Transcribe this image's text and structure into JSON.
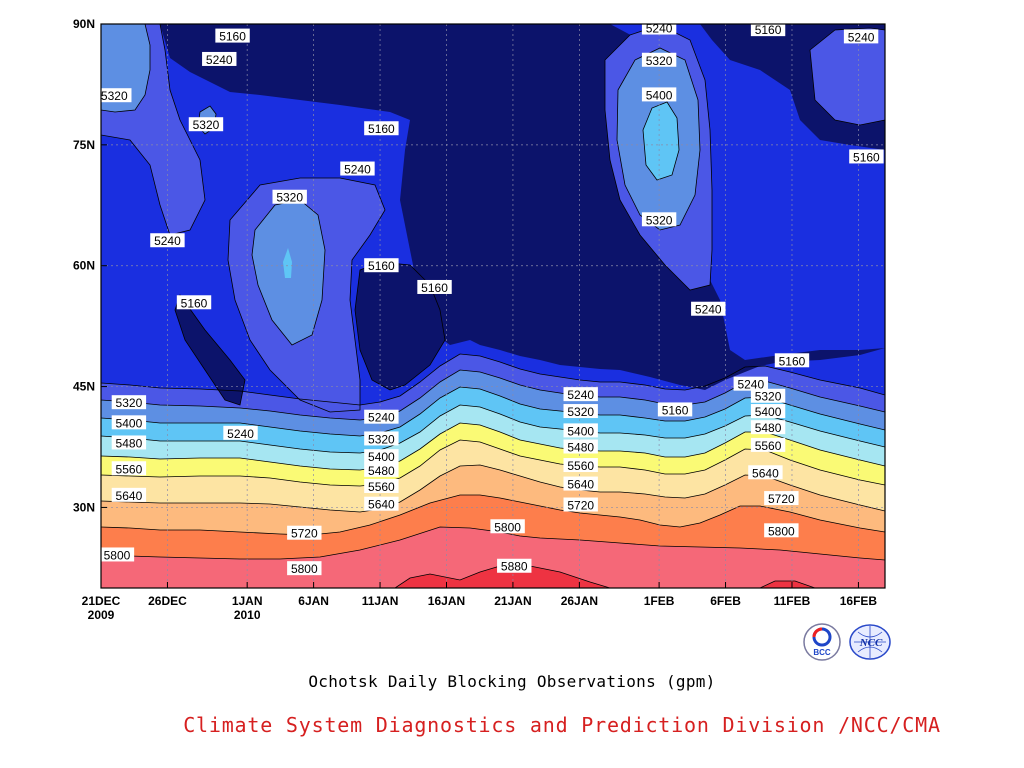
{
  "chart_data": {
    "type": "heatmap",
    "title": "Ochotsk Daily Blocking Observations (gpm)",
    "xlabel": "",
    "ylabel": "",
    "x_tick_labels": [
      {
        "day": 0,
        "line1": "21DEC",
        "line2": "2009"
      },
      {
        "day": 5,
        "line1": "26DEC",
        "line2": ""
      },
      {
        "day": 11,
        "line1": "1JAN",
        "line2": "2010"
      },
      {
        "day": 16,
        "line1": "6JAN",
        "line2": ""
      },
      {
        "day": 21,
        "line1": "11JAN",
        "line2": ""
      },
      {
        "day": 26,
        "line1": "16JAN",
        "line2": ""
      },
      {
        "day": 31,
        "line1": "21JAN",
        "line2": ""
      },
      {
        "day": 36,
        "line1": "26JAN",
        "line2": ""
      },
      {
        "day": 42,
        "line1": "1FEB",
        "line2": ""
      },
      {
        "day": 47,
        "line1": "6FEB",
        "line2": ""
      },
      {
        "day": 52,
        "line1": "11FEB",
        "line2": ""
      },
      {
        "day": 57,
        "line1": "16FEB",
        "line2": ""
      }
    ],
    "y_tick_labels": [
      {
        "lat": 30,
        "label": "30N"
      },
      {
        "lat": 45,
        "label": "45N"
      },
      {
        "lat": 60,
        "label": "60N"
      },
      {
        "lat": 75,
        "label": "75N"
      },
      {
        "lat": 90,
        "label": "90N"
      }
    ],
    "xlim": [
      0,
      59
    ],
    "ylim": [
      20,
      90
    ],
    "grid": true,
    "contour_levels": [
      5160,
      5240,
      5320,
      5400,
      5480,
      5560,
      5640,
      5720,
      5800,
      5880
    ],
    "level_colors": [
      "#0c136b",
      "#1a2fe0",
      "#4b57e6",
      "#5d8fe3",
      "#5fc5f5",
      "#a6e6f2",
      "#fafa75",
      "#fde4a3",
      "#fdba7e",
      "#fd7e4c",
      "#f56878",
      "#ee3342"
    ],
    "contour_labels": [
      {
        "text": "5160",
        "day": 9.9,
        "lat": 88.5
      },
      {
        "text": "5240",
        "day": 8.9,
        "lat": 85.6
      },
      {
        "text": "5320",
        "day": 1.0,
        "lat": 81.1
      },
      {
        "text": "5320",
        "day": 7.9,
        "lat": 77.5
      },
      {
        "text": "5240",
        "day": 5.0,
        "lat": 63.1
      },
      {
        "text": "5160",
        "day": 7.0,
        "lat": 55.4
      },
      {
        "text": "5320",
        "day": 14.2,
        "lat": 68.5
      },
      {
        "text": "5160",
        "day": 21.1,
        "lat": 77.0
      },
      {
        "text": "5240",
        "day": 19.3,
        "lat": 72.0
      },
      {
        "text": "5160",
        "day": 21.1,
        "lat": 60.0
      },
      {
        "text": "5160",
        "day": 25.1,
        "lat": 57.3
      },
      {
        "text": "5240",
        "day": 42.0,
        "lat": 89.5
      },
      {
        "text": "5320",
        "day": 42.0,
        "lat": 85.5
      },
      {
        "text": "5400",
        "day": 42.0,
        "lat": 81.2
      },
      {
        "text": "5320",
        "day": 42.0,
        "lat": 65.7
      },
      {
        "text": "5240",
        "day": 45.7,
        "lat": 54.6
      },
      {
        "text": "5160",
        "day": 50.2,
        "lat": 89.3
      },
      {
        "text": "5240",
        "day": 57.2,
        "lat": 88.4
      },
      {
        "text": "5160",
        "day": 57.6,
        "lat": 73.5
      },
      {
        "text": "5160",
        "day": 52.0,
        "lat": 48.2
      },
      {
        "text": "5320",
        "day": 2.1,
        "lat": 43.0
      },
      {
        "text": "5400",
        "day": 2.1,
        "lat": 40.5
      },
      {
        "text": "5480",
        "day": 2.1,
        "lat": 38.0
      },
      {
        "text": "5560",
        "day": 2.1,
        "lat": 34.8
      },
      {
        "text": "5640",
        "day": 2.1,
        "lat": 31.5
      },
      {
        "text": "5800",
        "day": 1.2,
        "lat": 24.1
      },
      {
        "text": "5240",
        "day": 10.5,
        "lat": 39.2
      },
      {
        "text": "5720",
        "day": 15.3,
        "lat": 26.8
      },
      {
        "text": "5800",
        "day": 15.3,
        "lat": 22.4
      },
      {
        "text": "5240",
        "day": 21.1,
        "lat": 41.2
      },
      {
        "text": "5320",
        "day": 21.1,
        "lat": 38.5
      },
      {
        "text": "5400",
        "day": 21.1,
        "lat": 36.3
      },
      {
        "text": "5480",
        "day": 21.1,
        "lat": 34.6
      },
      {
        "text": "5560",
        "day": 21.1,
        "lat": 32.6
      },
      {
        "text": "5640",
        "day": 21.1,
        "lat": 30.4
      },
      {
        "text": "5800",
        "day": 30.6,
        "lat": 27.6
      },
      {
        "text": "5880",
        "day": 31.1,
        "lat": 22.7
      },
      {
        "text": "5240",
        "day": 36.1,
        "lat": 44.0
      },
      {
        "text": "5320",
        "day": 36.1,
        "lat": 41.9
      },
      {
        "text": "5400",
        "day": 36.1,
        "lat": 39.5
      },
      {
        "text": "5480",
        "day": 36.1,
        "lat": 37.5
      },
      {
        "text": "5560",
        "day": 36.1,
        "lat": 35.2
      },
      {
        "text": "5640",
        "day": 36.1,
        "lat": 32.9
      },
      {
        "text": "5720",
        "day": 36.1,
        "lat": 30.3
      },
      {
        "text": "5160",
        "day": 43.2,
        "lat": 42.1
      },
      {
        "text": "5240",
        "day": 48.9,
        "lat": 45.3
      },
      {
        "text": "5320",
        "day": 50.2,
        "lat": 43.8
      },
      {
        "text": "5400",
        "day": 50.2,
        "lat": 41.9
      },
      {
        "text": "5480",
        "day": 50.2,
        "lat": 39.9
      },
      {
        "text": "5560",
        "day": 50.2,
        "lat": 37.7
      },
      {
        "text": "5640",
        "day": 50.0,
        "lat": 34.3
      },
      {
        "text": "5720",
        "day": 51.2,
        "lat": 31.1
      },
      {
        "text": "5800",
        "day": 51.2,
        "lat": 27.1
      }
    ]
  },
  "caption": {
    "title": "Ochotsk Daily Blocking Observations (gpm)",
    "credit": "Climate System Diagnostics and Prediction Division /NCC/CMA"
  },
  "logos": [
    {
      "name": "bcc-logo",
      "text": "BCC"
    },
    {
      "name": "ncc-logo",
      "text": "NCC"
    }
  ]
}
